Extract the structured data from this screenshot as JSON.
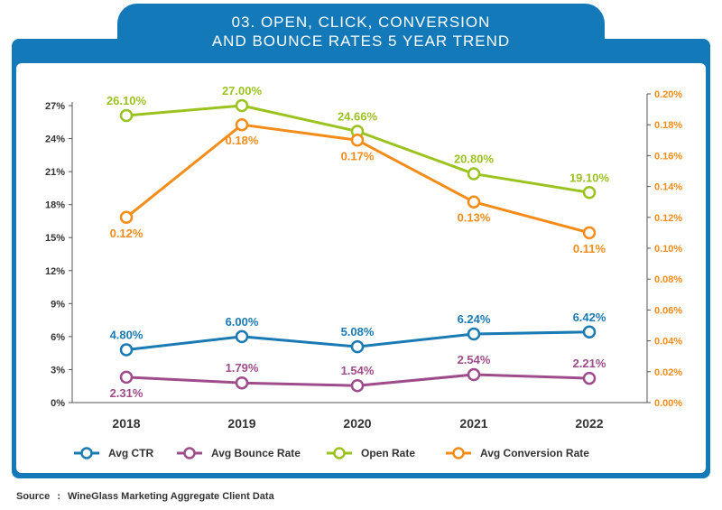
{
  "title_lines": [
    "03. OPEN, CLICK, CONVERSION",
    "AND BOUNCE RATES 5 YEAR TREND"
  ],
  "source_label": "Source",
  "source_sep": ":",
  "source_text": "WineGlass Marketing Aggregate Client Data",
  "colors": {
    "frame": "#1479b8",
    "ctr": "#1a7ab3",
    "bounce": "#9e4c8a",
    "open": "#9bc31f",
    "conversion": "#f48c1a",
    "left_axis_text": "#333333",
    "right_axis_text": "#f48c1a"
  },
  "chart_data": {
    "type": "line",
    "categories": [
      "2018",
      "2019",
      "2020",
      "2021",
      "2022"
    ],
    "left_axis": {
      "range": [
        0,
        27
      ],
      "ticks": [
        "0%",
        "3%",
        "6%",
        "9%",
        "12%",
        "15%",
        "18%",
        "21%",
        "24%",
        "27%"
      ]
    },
    "right_axis": {
      "range": [
        0,
        0.2
      ],
      "ticks": [
        "0.00%",
        "0.02%",
        "0.04%",
        "0.06%",
        "0.08%",
        "0.10%",
        "0.12%",
        "0.14%",
        "0.16%",
        "0.18%",
        "0.20%"
      ]
    },
    "grid": false,
    "legend_position": "bottom",
    "series": [
      {
        "name": "Avg CTR",
        "axis": "left",
        "color_key": "ctr",
        "values": [
          4.8,
          6.0,
          5.08,
          6.24,
          6.42
        ],
        "labels": [
          "4.80%",
          "6.00%",
          "5.08%",
          "6.24%",
          "6.42%"
        ],
        "label_pos": [
          "above",
          "above",
          "above",
          "above",
          "above"
        ]
      },
      {
        "name": "Avg Bounce Rate",
        "axis": "left",
        "color_key": "bounce",
        "values": [
          2.31,
          1.79,
          1.54,
          2.54,
          2.21
        ],
        "labels": [
          "2.31%",
          "1.79%",
          "1.54%",
          "2.54%",
          "2.21%"
        ],
        "label_pos": [
          "below",
          "above",
          "above",
          "above",
          "above"
        ]
      },
      {
        "name": "Open Rate",
        "axis": "left",
        "color_key": "open",
        "values": [
          26.1,
          27.0,
          24.66,
          20.8,
          19.1
        ],
        "labels": [
          "26.10%",
          "27.00%",
          "24.66%",
          "20.80%",
          "19.10%"
        ],
        "label_pos": [
          "above",
          "above",
          "above",
          "above",
          "above"
        ]
      },
      {
        "name": "Avg Conversion Rate",
        "axis": "right",
        "color_key": "conversion",
        "values": [
          0.12,
          0.18,
          0.17,
          0.13,
          0.11
        ],
        "labels": [
          "0.12%",
          "0.18%",
          "0.17%",
          "0.13%",
          "0.11%"
        ],
        "label_pos": [
          "below",
          "below",
          "below",
          "below",
          "below"
        ]
      }
    ]
  }
}
